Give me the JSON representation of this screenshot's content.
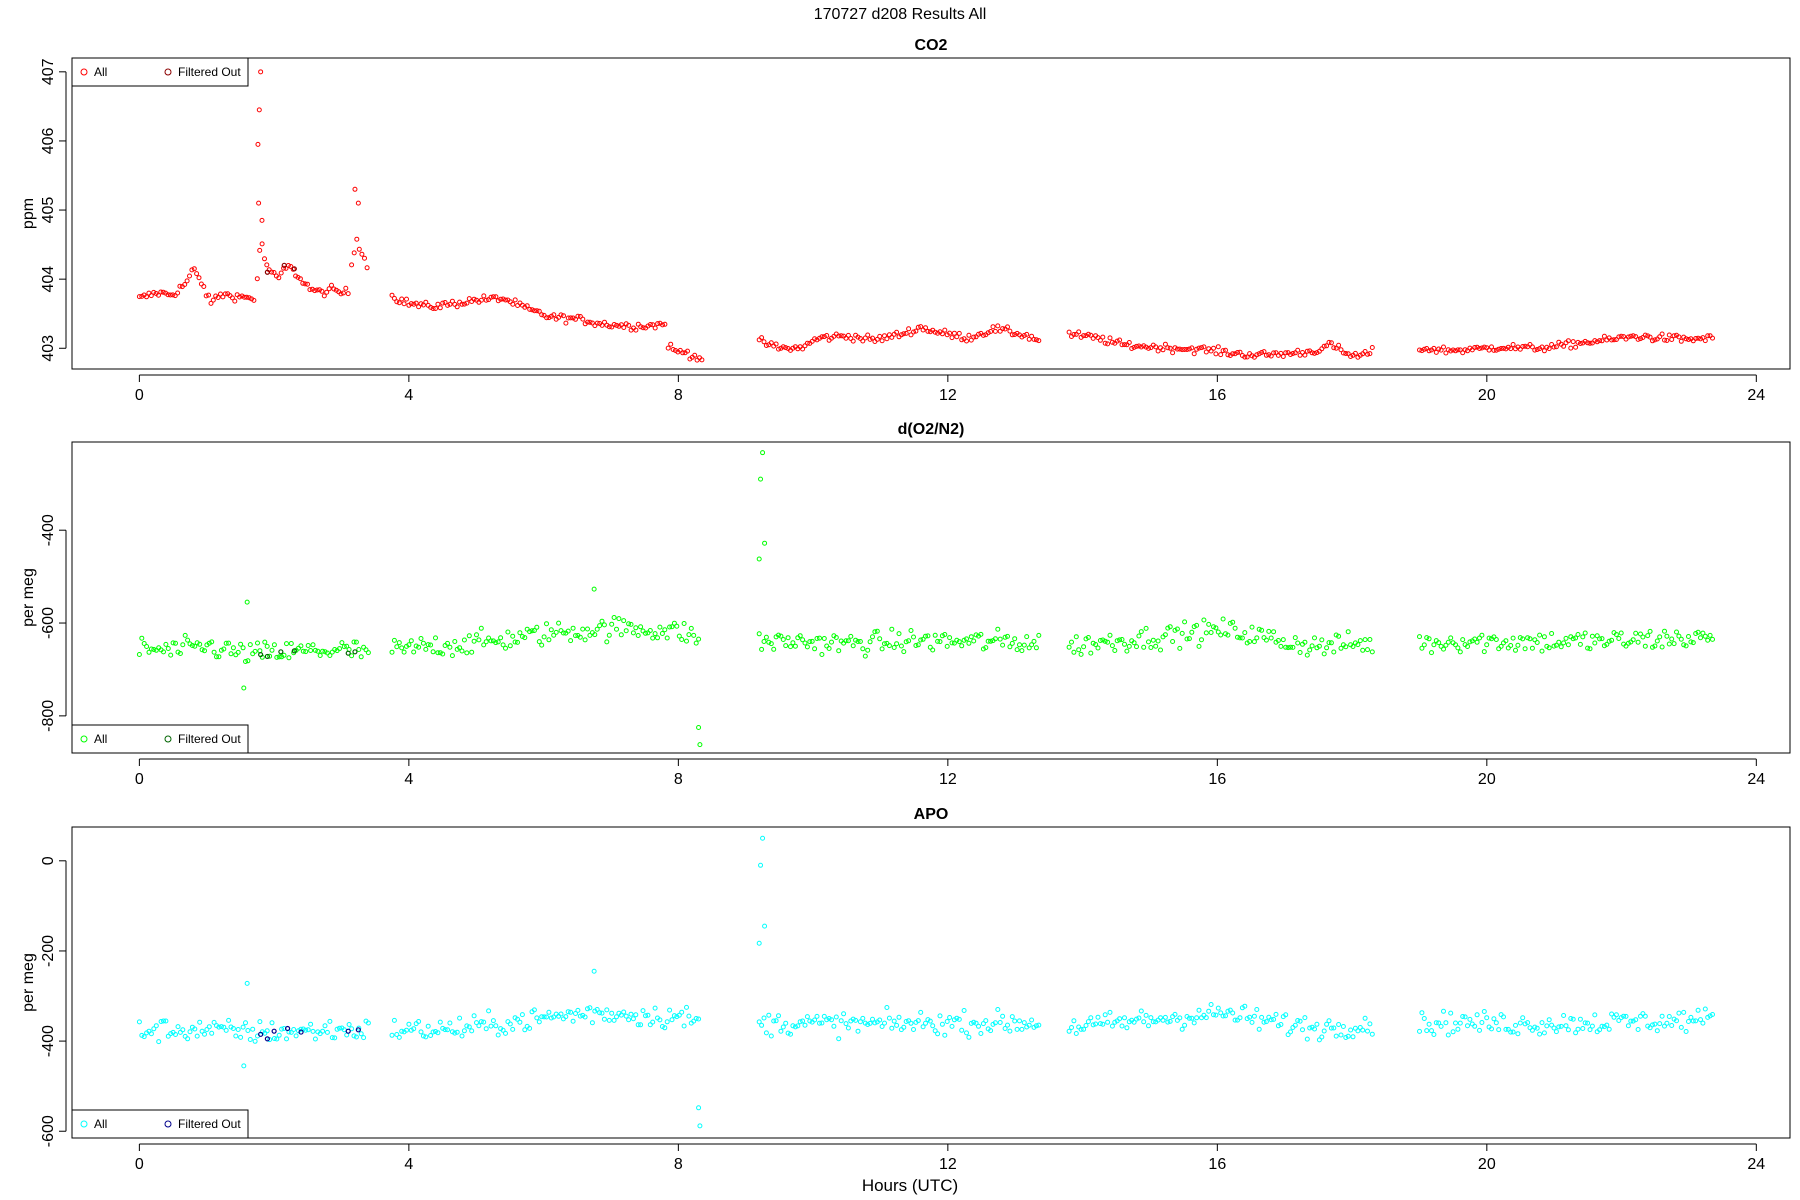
{
  "figure": {
    "title": "170727   d208   Results All",
    "xlabel": "Hours (UTC)"
  },
  "chart_data": [
    {
      "type": "scatter",
      "title": "CO2",
      "ylabel": "ppm",
      "xlim": [
        -1,
        24.5
      ],
      "ylim": [
        402.7,
        407.2
      ],
      "xticks": [
        0,
        4,
        8,
        12,
        16,
        20,
        24
      ],
      "yticks": [
        403,
        404,
        405,
        406,
        407
      ],
      "legend": {
        "position": "top-left",
        "entries": [
          "All",
          "Filtered Out"
        ]
      },
      "colors": {
        "all": "#ff0000",
        "filtered": "#8b0000"
      },
      "segments": [
        {
          "x": [
            0.0,
            0.25,
            0.5,
            0.7,
            0.8,
            0.95,
            1.05,
            1.2,
            1.45,
            1.7
          ],
          "y": [
            403.72,
            403.8,
            403.78,
            403.95,
            404.15,
            403.9,
            403.65,
            403.78,
            403.75,
            403.72
          ]
        },
        {
          "x": [
            1.75,
            1.8,
            1.85,
            1.95,
            2.05,
            2.2,
            2.4,
            2.55,
            2.7,
            2.85,
            3.0,
            3.1
          ],
          "y": [
            404.0,
            404.6,
            404.3,
            404.1,
            404.0,
            404.2,
            404.0,
            403.85,
            403.8,
            403.85,
            403.8,
            403.82
          ]
        },
        {
          "x": [
            3.15,
            3.22,
            3.3,
            3.38
          ],
          "y": [
            404.2,
            404.6,
            404.4,
            404.2
          ]
        },
        {
          "x": [
            3.75,
            4.0,
            4.3,
            4.7,
            5.0,
            5.4,
            5.8,
            6.1,
            6.5,
            6.9,
            7.3,
            7.6,
            7.8
          ],
          "y": [
            403.75,
            403.65,
            403.6,
            403.65,
            403.7,
            403.72,
            403.55,
            403.45,
            403.42,
            403.35,
            403.32,
            403.33,
            403.35
          ]
        },
        {
          "x": [
            7.85,
            7.95,
            8.1,
            8.2,
            8.35
          ],
          "y": [
            403.05,
            402.95,
            402.95,
            402.9,
            402.85
          ]
        },
        {
          "x": [
            9.2,
            9.5,
            9.8,
            10.1,
            10.5,
            10.9,
            11.3,
            11.6,
            11.9,
            12.3,
            12.7,
            13.1,
            13.35
          ],
          "y": [
            403.1,
            403.0,
            403.0,
            403.15,
            403.18,
            403.12,
            403.2,
            403.3,
            403.22,
            403.15,
            403.28,
            403.2,
            403.12
          ]
        },
        {
          "x": [
            13.8,
            14.2,
            14.6,
            15.0,
            15.4,
            15.8,
            16.2,
            16.6,
            17.0,
            17.4,
            17.7,
            17.9,
            18.1,
            18.3
          ],
          "y": [
            403.2,
            403.15,
            403.05,
            403.02,
            403.0,
            402.98,
            402.93,
            402.9,
            402.92,
            402.95,
            403.05,
            402.92,
            402.88,
            402.95
          ]
        },
        {
          "x": [
            19.0,
            19.4,
            19.8,
            20.2,
            20.6,
            21.0,
            21.4,
            21.8,
            22.2,
            22.6,
            23.0,
            23.35
          ],
          "y": [
            403.0,
            402.97,
            402.98,
            403.02,
            403.0,
            403.02,
            403.08,
            403.12,
            403.17,
            403.15,
            403.13,
            403.15
          ]
        }
      ],
      "spikes": [
        {
          "x": 1.8,
          "y": 407.0
        },
        {
          "x": 1.78,
          "y": 406.45
        },
        {
          "x": 1.76,
          "y": 405.95
        },
        {
          "x": 1.77,
          "y": 405.1
        },
        {
          "x": 1.82,
          "y": 404.85
        },
        {
          "x": 3.2,
          "y": 405.3
        },
        {
          "x": 3.25,
          "y": 405.1
        }
      ],
      "filtered_points": [
        {
          "x": 1.9,
          "y": 404.1
        },
        {
          "x": 2.15,
          "y": 404.2
        },
        {
          "x": 2.3,
          "y": 404.15
        }
      ]
    },
    {
      "type": "scatter",
      "title": "d(O2/N2)",
      "ylabel": "per meg",
      "xlim": [
        -1,
        24.5
      ],
      "ylim": [
        -880,
        -210
      ],
      "xticks": [
        0,
        4,
        8,
        12,
        16,
        20,
        24
      ],
      "yticks": [
        -400,
        -600,
        -800
      ],
      "legend": {
        "position": "bottom-left",
        "entries": [
          "All",
          "Filtered Out"
        ]
      },
      "colors": {
        "all": "#00ff00",
        "filtered": "#006400"
      },
      "segments": [
        {
          "x": [
            0.0,
            0.5,
            1.0,
            1.5,
            2.0,
            2.5,
            3.0,
            3.4
          ],
          "y": [
            -655,
            -660,
            -650,
            -665,
            -665,
            -660,
            -658,
            -662
          ]
        },
        {
          "x": [
            3.75,
            4.3,
            4.8,
            5.2,
            5.7,
            6.2,
            6.7,
            7.2,
            7.7,
            8.1,
            8.3
          ],
          "y": [
            -660,
            -650,
            -645,
            -640,
            -630,
            -620,
            -615,
            -610,
            -615,
            -620,
            -635
          ]
        },
        {
          "x": [
            9.2,
            9.8,
            10.4,
            11.0,
            11.6,
            12.2,
            12.8,
            13.35
          ],
          "y": [
            -640,
            -640,
            -645,
            -642,
            -638,
            -640,
            -640,
            -642
          ]
        },
        {
          "x": [
            13.8,
            14.4,
            15.0,
            15.6,
            16.1,
            16.5,
            17.0,
            17.5,
            18.0,
            18.3
          ],
          "y": [
            -650,
            -640,
            -632,
            -622,
            -615,
            -625,
            -640,
            -650,
            -645,
            -645
          ]
        },
        {
          "x": [
            19.0,
            19.6,
            20.2,
            20.8,
            21.4,
            22.0,
            22.6,
            23.35
          ],
          "y": [
            -645,
            -638,
            -640,
            -640,
            -640,
            -638,
            -635,
            -632
          ]
        }
      ],
      "spikes": [
        {
          "x": 9.25,
          "y": -233
        },
        {
          "x": 9.22,
          "y": -290
        },
        {
          "x": 9.28,
          "y": -428
        },
        {
          "x": 9.2,
          "y": -462
        },
        {
          "x": 8.3,
          "y": -825
        },
        {
          "x": 8.32,
          "y": -862
        },
        {
          "x": 1.6,
          "y": -555
        },
        {
          "x": 1.55,
          "y": -740
        },
        {
          "x": 6.75,
          "y": -527
        }
      ],
      "filtered_points": [
        {
          "x": 1.8,
          "y": -668
        },
        {
          "x": 1.9,
          "y": -672
        },
        {
          "x": 2.1,
          "y": -662
        },
        {
          "x": 2.3,
          "y": -660
        },
        {
          "x": 3.1,
          "y": -665
        },
        {
          "x": 3.2,
          "y": -662
        }
      ]
    },
    {
      "type": "scatter",
      "title": "APO",
      "ylabel": "per meg",
      "xlim": [
        -1,
        24.5
      ],
      "ylim": [
        -615,
        75
      ],
      "xticks": [
        0,
        4,
        8,
        12,
        16,
        20,
        24
      ],
      "yticks": [
        0,
        -200,
        -400,
        -600
      ],
      "legend": {
        "position": "bottom-left",
        "entries": [
          "All",
          "Filtered Out"
        ]
      },
      "colors": {
        "all": "#00ffff",
        "filtered": "#00008b"
      },
      "segments": [
        {
          "x": [
            0.0,
            0.5,
            1.0,
            1.5,
            2.0,
            2.5,
            3.0,
            3.4
          ],
          "y": [
            -378,
            -375,
            -375,
            -380,
            -380,
            -378,
            -375,
            -375
          ]
        },
        {
          "x": [
            3.75,
            4.3,
            4.8,
            5.2,
            5.7,
            6.2,
            6.7,
            7.2,
            7.7,
            8.1,
            8.3
          ],
          "y": [
            -375,
            -375,
            -372,
            -365,
            -355,
            -345,
            -338,
            -340,
            -345,
            -348,
            -360
          ]
        },
        {
          "x": [
            9.2,
            9.8,
            10.4,
            11.0,
            11.6,
            12.2,
            12.8,
            13.35
          ],
          "y": [
            -362,
            -360,
            -362,
            -362,
            -360,
            -360,
            -360,
            -360
          ]
        },
        {
          "x": [
            13.8,
            14.4,
            15.0,
            15.6,
            16.1,
            16.5,
            17.0,
            17.5,
            18.0,
            18.3
          ],
          "y": [
            -368,
            -362,
            -352,
            -345,
            -338,
            -350,
            -362,
            -372,
            -365,
            -362
          ]
        },
        {
          "x": [
            19.0,
            19.6,
            20.2,
            20.8,
            21.4,
            22.0,
            22.6,
            23.35
          ],
          "y": [
            -362,
            -358,
            -362,
            -362,
            -360,
            -358,
            -356,
            -352
          ]
        }
      ],
      "spikes": [
        {
          "x": 9.25,
          "y": 50
        },
        {
          "x": 9.22,
          "y": -10
        },
        {
          "x": 9.28,
          "y": -145
        },
        {
          "x": 9.2,
          "y": -183
        },
        {
          "x": 8.3,
          "y": -548
        },
        {
          "x": 8.32,
          "y": -588
        },
        {
          "x": 1.6,
          "y": -272
        },
        {
          "x": 1.55,
          "y": -455
        },
        {
          "x": 6.75,
          "y": -245
        }
      ],
      "filtered_points": [
        {
          "x": 1.8,
          "y": -385
        },
        {
          "x": 1.9,
          "y": -395
        },
        {
          "x": 2.0,
          "y": -378
        },
        {
          "x": 2.2,
          "y": -372
        },
        {
          "x": 2.4,
          "y": -380
        },
        {
          "x": 3.1,
          "y": -378
        },
        {
          "x": 3.25,
          "y": -375
        }
      ]
    }
  ]
}
